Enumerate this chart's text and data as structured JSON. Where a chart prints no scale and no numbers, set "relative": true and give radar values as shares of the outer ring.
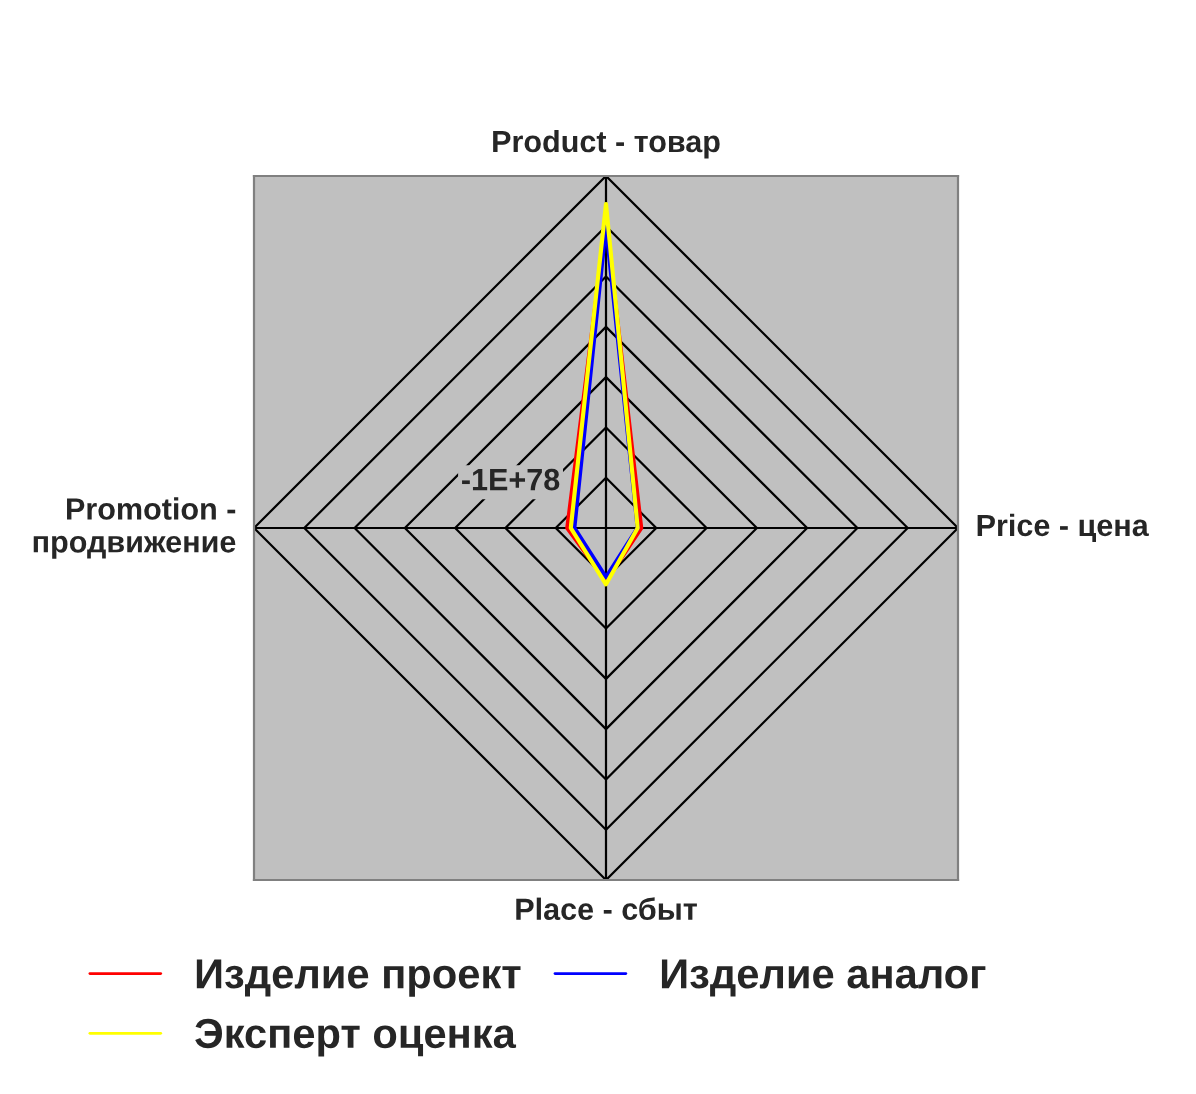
{
  "chart_data": {
    "type": "radar",
    "relative": true,
    "categories": [
      "Product - товар",
      "Price - цена",
      "Place - сбыт",
      "Promotion - продвижение"
    ],
    "series": [
      {
        "name": "Изделие проект",
        "color": "#ff0000",
        "values": [
          0.87,
          0.1,
          0.15,
          0.11
        ]
      },
      {
        "name": "Изделие аналог",
        "color": "#0000ff",
        "values": [
          0.86,
          0.09,
          0.14,
          0.09
        ]
      },
      {
        "name": "Эксперт оценка",
        "color": "#ffff00",
        "values": [
          0.92,
          0.09,
          0.16,
          0.1
        ]
      }
    ],
    "annotations": [
      "-1E+78"
    ],
    "legend": "bottom"
  }
}
